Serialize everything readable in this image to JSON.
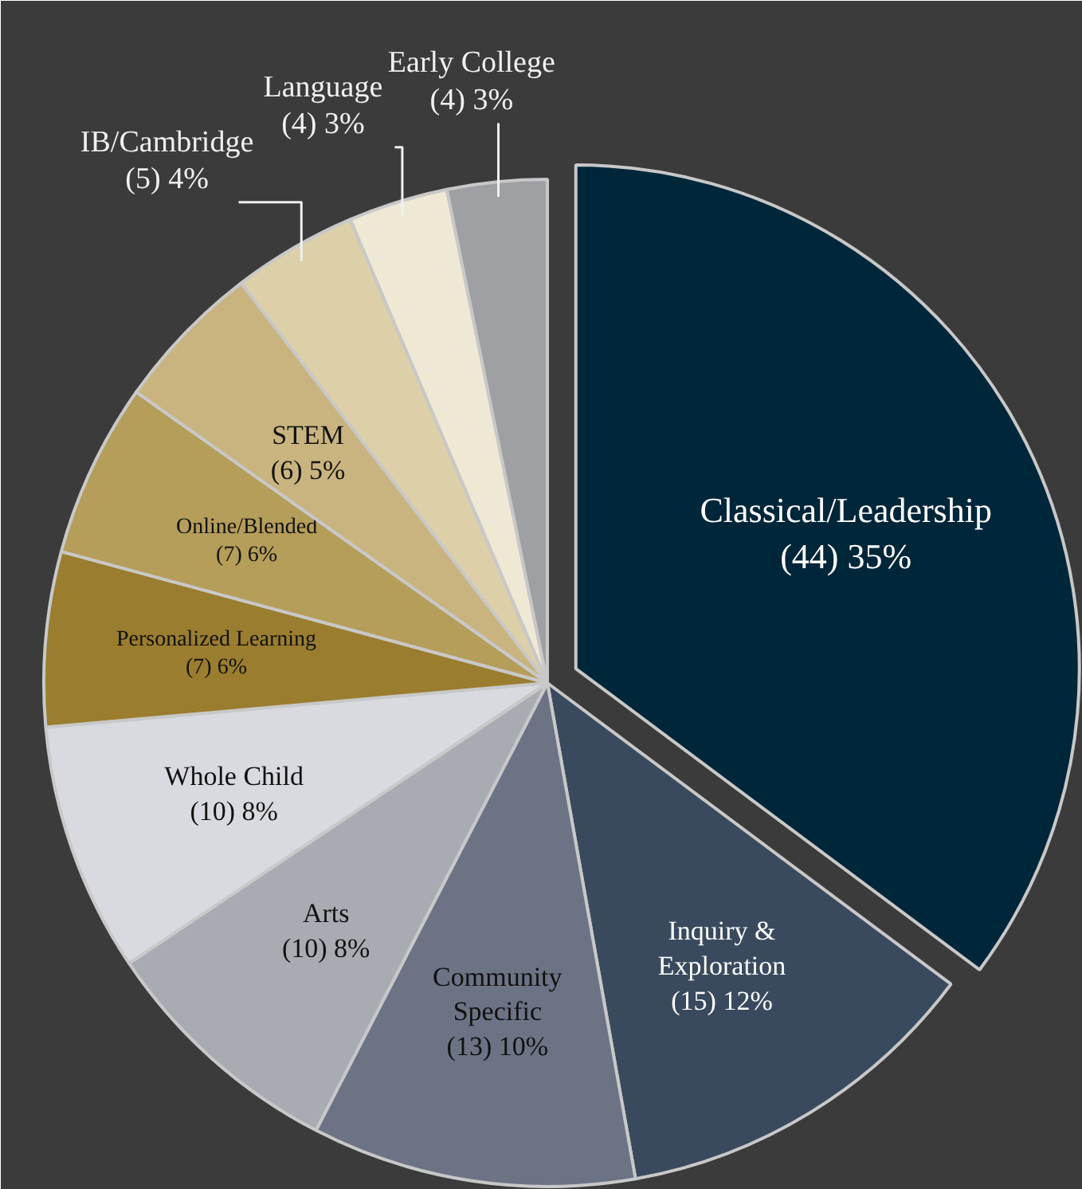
{
  "chart_data": {
    "type": "pie",
    "categories": [
      "Classical/Leadership",
      "Inquiry &\nExploration",
      "Community\nSpecific",
      "Arts",
      "Whole Child",
      "Personalized Learning",
      "Online/Blended",
      "STEM",
      "IB/Cambridge",
      "Language",
      "Early College"
    ],
    "values": [
      44,
      15,
      13,
      10,
      10,
      7,
      7,
      6,
      5,
      4,
      4
    ],
    "value_labels": [
      "(44) 35%",
      "(15) 12%",
      "(13) 10%",
      "(10) 8%",
      "(10) 8%",
      "(7) 6%",
      "(7) 6%",
      "(6) 5%",
      "(5) 4%",
      "(4) 3%",
      "(4) 3%"
    ],
    "colors": [
      "#00263a",
      "#3a4a5e",
      "#6c7385",
      "#a9abb2",
      "#d9dadf",
      "#9a7d2e",
      "#b59d5a",
      "#c9b47f",
      "#ddd0a8",
      "#efe8d4",
      "#9fa0a4"
    ]
  }
}
